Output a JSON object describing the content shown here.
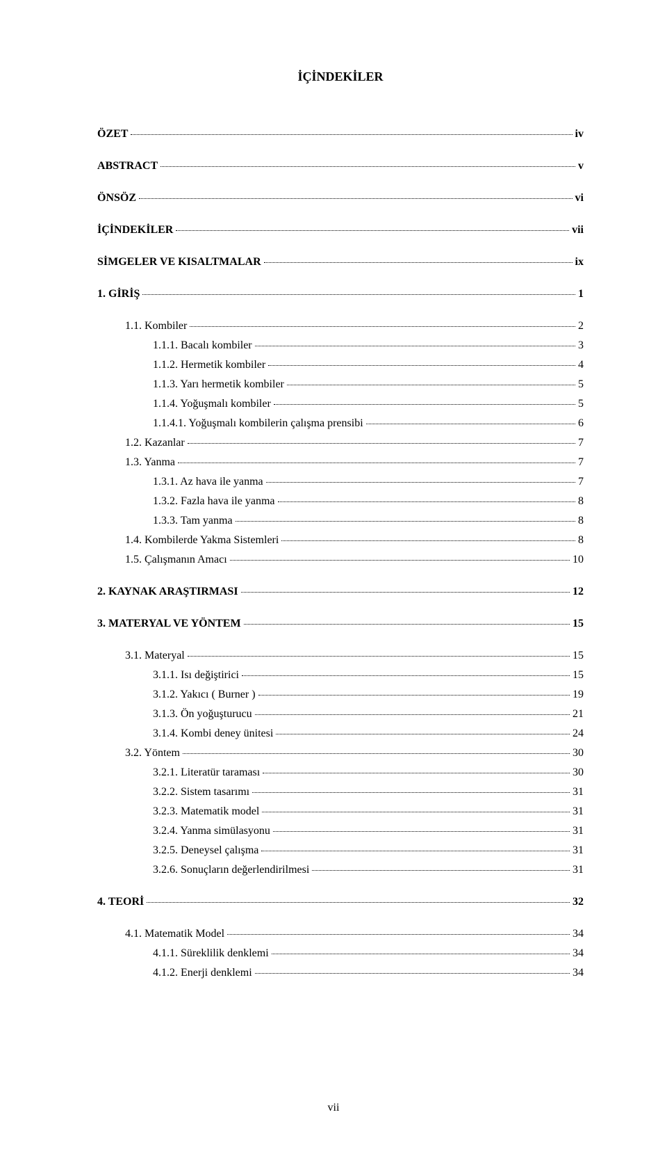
{
  "title": "İÇİNDEKİLER",
  "footer_page": "vii",
  "entries": [
    {
      "label": "ÖZET",
      "page": "iv",
      "bold": true,
      "indent": 0,
      "spacer_after": true
    },
    {
      "label": "ABSTRACT",
      "page": "v",
      "bold": true,
      "indent": 0,
      "spacer_after": true
    },
    {
      "label": "ÖNSÖZ",
      "page": "vi",
      "bold": true,
      "indent": 0,
      "spacer_after": true
    },
    {
      "label": "İÇİNDEKİLER",
      "page": "vii",
      "bold": true,
      "indent": 0,
      "spacer_after": true
    },
    {
      "label": "SİMGELER VE KISALTMALAR",
      "page": "ix",
      "bold": true,
      "indent": 0,
      "spacer_after": true
    },
    {
      "label": "1. GİRİŞ",
      "page": "1",
      "bold": true,
      "indent": 0,
      "spacer_after": true
    },
    {
      "label": "1.1. Kombiler",
      "page": "2",
      "bold": false,
      "indent": 1,
      "spacer_after": false
    },
    {
      "label": "1.1.1.    Bacalı kombiler",
      "page": "3",
      "bold": false,
      "indent": 2,
      "spacer_after": false
    },
    {
      "label": "1.1.2.    Hermetik kombiler",
      "page": "4",
      "bold": false,
      "indent": 2,
      "spacer_after": false
    },
    {
      "label": "1.1.3.    Yarı hermetik kombiler",
      "page": "5",
      "bold": false,
      "indent": 2,
      "spacer_after": false
    },
    {
      "label": "1.1.4.    Yoğuşmalı kombiler",
      "page": "5",
      "bold": false,
      "indent": 2,
      "spacer_after": false
    },
    {
      "label": "1.1.4.1. Yoğuşmalı kombilerin çalışma prensibi",
      "page": "6",
      "bold": false,
      "indent": 2,
      "spacer_after": false
    },
    {
      "label": "1.2. Kazanlar",
      "page": "7",
      "bold": false,
      "indent": 1,
      "spacer_after": false
    },
    {
      "label": "1.3. Yanma",
      "page": "7",
      "bold": false,
      "indent": 1,
      "spacer_after": false
    },
    {
      "label": "1.3.1. Az hava ile yanma",
      "page": "7",
      "bold": false,
      "indent": 2,
      "spacer_after": false
    },
    {
      "label": "1.3.2. Fazla hava ile yanma",
      "page": "8",
      "bold": false,
      "indent": 2,
      "spacer_after": false
    },
    {
      "label": "1.3.3. Tam yanma",
      "page": "8",
      "bold": false,
      "indent": 2,
      "spacer_after": false
    },
    {
      "label": "1.4. Kombilerde Yakma Sistemleri",
      "page": "8",
      "bold": false,
      "indent": 1,
      "spacer_after": false
    },
    {
      "label": "1.5. Çalışmanın Amacı",
      "page": "10",
      "bold": false,
      "indent": 1,
      "spacer_after": true
    },
    {
      "label": "2. KAYNAK ARAŞTIRMASI",
      "page": "12",
      "bold": true,
      "indent": 0,
      "spacer_after": true
    },
    {
      "label": "3. MATERYAL VE YÖNTEM",
      "page": "15",
      "bold": true,
      "indent": 0,
      "spacer_after": true
    },
    {
      "label": "3.1. Materyal",
      "page": "15",
      "bold": false,
      "indent": 1,
      "spacer_after": false
    },
    {
      "label": "3.1.1. Isı değiştirici",
      "page": "15",
      "bold": false,
      "indent": 2,
      "spacer_after": false
    },
    {
      "label": "3.1.2. Yakıcı ( Burner )",
      "page": "19",
      "bold": false,
      "indent": 2,
      "spacer_after": false
    },
    {
      "label": "3.1.3. Ön yoğuşturucu",
      "page": "21",
      "bold": false,
      "indent": 2,
      "spacer_after": false
    },
    {
      "label": "3.1.4. Kombi deney ünitesi",
      "page": "24",
      "bold": false,
      "indent": 2,
      "spacer_after": false
    },
    {
      "label": "3.2. Yöntem",
      "page": "30",
      "bold": false,
      "indent": 1,
      "spacer_after": false
    },
    {
      "label": "3.2.1. Literatür taraması",
      "page": "30",
      "bold": false,
      "indent": 2,
      "spacer_after": false
    },
    {
      "label": "3.2.2. Sistem tasarımı",
      "page": "31",
      "bold": false,
      "indent": 2,
      "spacer_after": false
    },
    {
      "label": "3.2.3. Matematik model",
      "page": "31",
      "bold": false,
      "indent": 2,
      "spacer_after": false
    },
    {
      "label": "3.2.4. Yanma simülasyonu",
      "page": "31",
      "bold": false,
      "indent": 2,
      "spacer_after": false
    },
    {
      "label": "3.2.5. Deneysel çalışma",
      "page": "31",
      "bold": false,
      "indent": 2,
      "spacer_after": false
    },
    {
      "label": "3.2.6. Sonuçların değerlendirilmesi",
      "page": "31",
      "bold": false,
      "indent": 2,
      "spacer_after": true
    },
    {
      "label": "4. TEORİ",
      "page": "32",
      "bold": true,
      "indent": 0,
      "spacer_after": true
    },
    {
      "label": "4.1. Matematik Model",
      "page": "34",
      "bold": false,
      "indent": 1,
      "spacer_after": false
    },
    {
      "label": "4.1.1. Süreklilik denklemi",
      "page": "34",
      "bold": false,
      "indent": 2,
      "spacer_after": false
    },
    {
      "label": "4.1.2. Enerji denklemi",
      "page": "34",
      "bold": false,
      "indent": 2,
      "spacer_after": false
    }
  ]
}
